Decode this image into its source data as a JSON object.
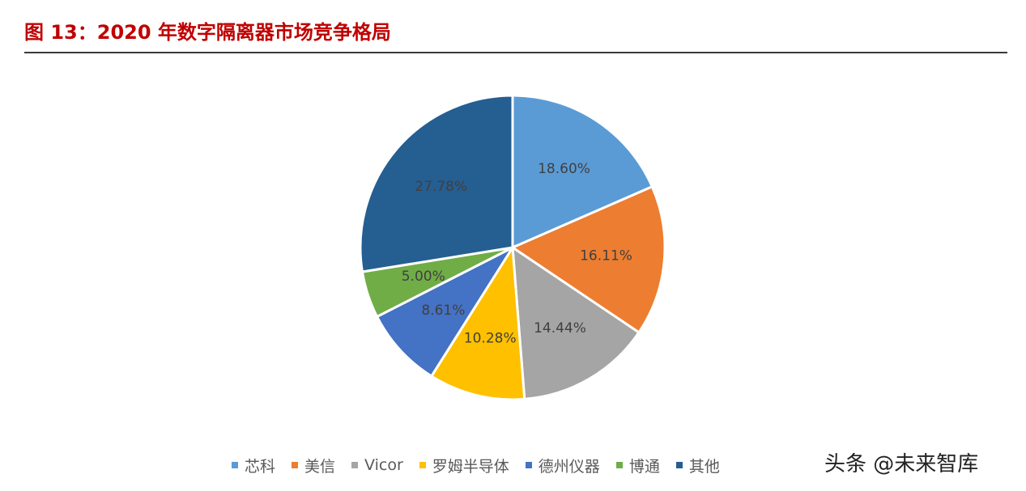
{
  "header": {
    "figure_title": "图 13：2020 年数字隔离器市场竞争格局"
  },
  "chart_data": {
    "type": "pie",
    "title": "",
    "slices": [
      {
        "label": "芯科",
        "value": 18.6,
        "display": "18.60%",
        "color": "#5b9bd5"
      },
      {
        "label": "美信",
        "value": 16.11,
        "display": "16.11%",
        "color": "#ed7d31"
      },
      {
        "label": "Vicor",
        "value": 14.44,
        "display": "14.44%",
        "color": "#a5a5a5"
      },
      {
        "label": "罗姆半导体",
        "value": 10.28,
        "display": "10.28%",
        "color": "#ffc000"
      },
      {
        "label": "德州仪器",
        "value": 8.61,
        "display": "8.61%",
        "color": "#4472c4"
      },
      {
        "label": "博通",
        "value": 5.0,
        "display": "5.00%",
        "color": "#70ad47"
      },
      {
        "label": "其他",
        "value": 27.78,
        "display": "27.78%",
        "color": "#255e91"
      }
    ],
    "start_angle": "12 o'clock",
    "direction": "clockwise",
    "legend_position": "bottom"
  },
  "watermark": {
    "text": "头条 @未来智库"
  }
}
